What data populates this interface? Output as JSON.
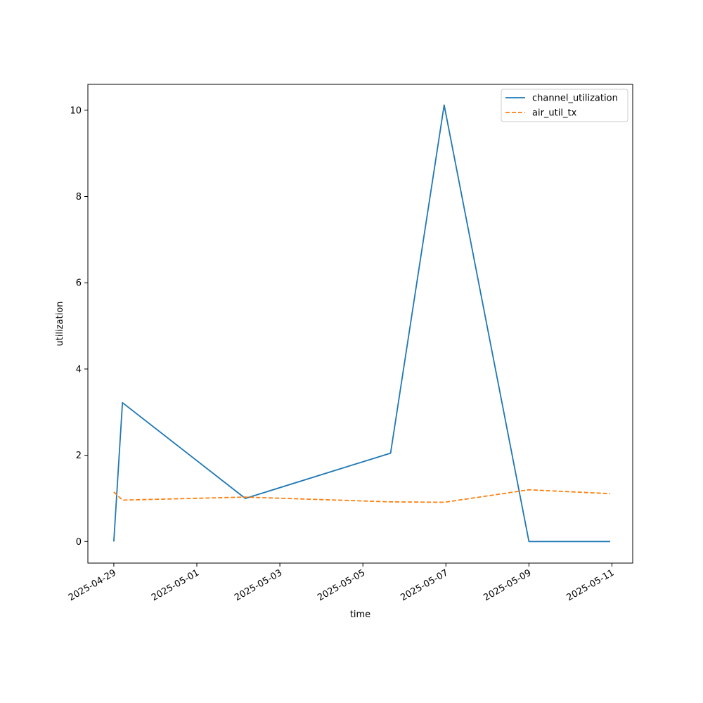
{
  "chart_data": {
    "type": "line",
    "title": "",
    "xlabel": "time",
    "ylabel": "utilization",
    "ylim": [
      -0.5,
      10.6
    ],
    "xlim": [
      "2025-04-28T09:00",
      "2025-05-11T12:00"
    ],
    "yticks": [
      0,
      2,
      4,
      6,
      8,
      10
    ],
    "xticks": [
      "2025-04-29",
      "2025-05-01",
      "2025-05-03",
      "2025-05-05",
      "2025-05-07",
      "2025-05-09",
      "2025-05-11"
    ],
    "grid": false,
    "legend_position": "top-right",
    "series": [
      {
        "name": "channel_utilization",
        "color": "#1f77b4",
        "dash": "solid",
        "points": [
          {
            "x": "2025-04-29T00:00",
            "y": 0.0
          },
          {
            "x": "2025-04-29T05:00",
            "y": 3.22
          },
          {
            "x": "2025-05-02T04:00",
            "y": 1.0
          },
          {
            "x": "2025-05-05T16:00",
            "y": 2.05
          },
          {
            "x": "2025-05-06T23:00",
            "y": 10.12
          },
          {
            "x": "2025-05-09T00:00",
            "y": 0.0
          },
          {
            "x": "2025-05-10T23:00",
            "y": 0.0
          }
        ]
      },
      {
        "name": "air_util_tx",
        "color": "#ff7f0e",
        "dash": "dashed",
        "points": [
          {
            "x": "2025-04-29T00:00",
            "y": 1.15
          },
          {
            "x": "2025-04-29T05:00",
            "y": 0.96
          },
          {
            "x": "2025-05-02T04:00",
            "y": 1.03
          },
          {
            "x": "2025-05-05T16:00",
            "y": 0.92
          },
          {
            "x": "2025-05-06T23:00",
            "y": 0.91
          },
          {
            "x": "2025-05-09T00:00",
            "y": 1.2
          },
          {
            "x": "2025-05-10T23:00",
            "y": 1.11
          }
        ]
      }
    ]
  }
}
